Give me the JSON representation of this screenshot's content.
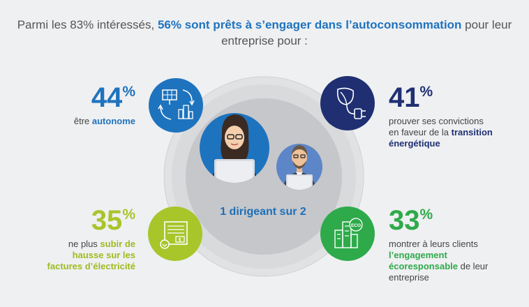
{
  "title": {
    "part1": "Parmi les 83% intéressés, ",
    "highlight": "56% sont prêts à s’engager dans l’autoconsommation",
    "part2": " pour leur entreprise pour :"
  },
  "center_label": "1 dirigeant sur 2",
  "stats": [
    {
      "id": "autonome",
      "number": "44",
      "symbol": "%",
      "color": "#1e73be",
      "text_before": "être ",
      "bold": "autonome",
      "text_after": "",
      "bold_color": "#1e73be",
      "icon": "solar-panel-cycle-icon"
    },
    {
      "id": "convictions",
      "number": "41",
      "symbol": "%",
      "color": "#1f2f72",
      "text_before": "prouver ses convictions en faveur de la ",
      "bold": "transition énergétique",
      "text_after": "",
      "bold_color": "#1f2f72",
      "icon": "leaf-plug-icon"
    },
    {
      "id": "factures",
      "number": "35",
      "symbol": "%",
      "color": "#a8c52a",
      "text_before": "ne plus ",
      "bold": "subir de hausse sur les factures d’électricité",
      "text_after": "",
      "bold_color": "#9dbb1f",
      "icon": "invoice-euro-icon"
    },
    {
      "id": "ecoresponsable",
      "number": "33",
      "symbol": "%",
      "color": "#2eaa4a",
      "text_before": "montrer à leurs clients ",
      "bold": "l’engagement écoresponsable",
      "text_after": " de leur entreprise",
      "bold_color": "#2eaa4a",
      "icon": "eco-buildings-icon"
    }
  ],
  "icons": {
    "eco_label": "ECO",
    "euro_label": "€"
  },
  "colors": {
    "background": "#eff0f2",
    "ring": "#d6d7d9",
    "inner": "#c4c5c8",
    "blue": "#1e73be",
    "navy": "#1f2f72",
    "lime": "#a8c52a",
    "green": "#2eaa4a"
  }
}
